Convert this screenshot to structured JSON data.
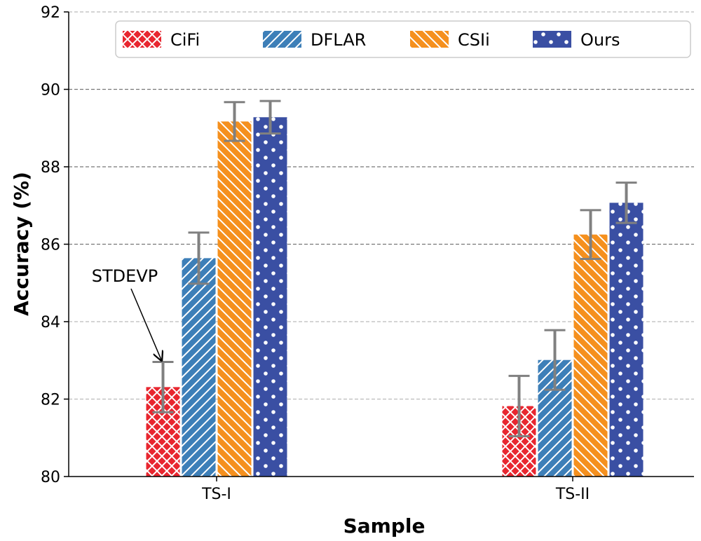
{
  "chart_data": {
    "type": "bar",
    "title": "",
    "xlabel": "Sample",
    "ylabel": "Accuracy (%)",
    "categories": [
      "TS-I",
      "TS-II"
    ],
    "ylim": [
      80,
      92
    ],
    "yticks": [
      80,
      82,
      84,
      86,
      88,
      90,
      92
    ],
    "grid": "y-dashed",
    "legend_position": "top-right",
    "series": [
      {
        "name": "CiFi",
        "values": [
          82.31,
          81.82
        ],
        "errors": [
          0.65,
          0.78
        ],
        "color": "#e8262f",
        "hatch": "crosshatch"
      },
      {
        "name": "DFLAR",
        "values": [
          85.64,
          83.01
        ],
        "errors": [
          0.66,
          0.77
        ],
        "color": "#3d7fb8",
        "hatch": "forward-diagonal"
      },
      {
        "name": "CSIi",
        "values": [
          89.17,
          86.25
        ],
        "errors": [
          0.5,
          0.63
        ],
        "color": "#f5901e",
        "hatch": "back-diagonal"
      },
      {
        "name": "Ours",
        "values": [
          89.28,
          87.07
        ],
        "errors": [
          0.42,
          0.52
        ],
        "color": "#3a4fa3",
        "hatch": "dots"
      }
    ],
    "error_bar_color": "#808080",
    "annotations": [
      {
        "text": "STDEVP",
        "points_to": {
          "series": "CiFi",
          "category": "TS-I"
        }
      }
    ]
  }
}
